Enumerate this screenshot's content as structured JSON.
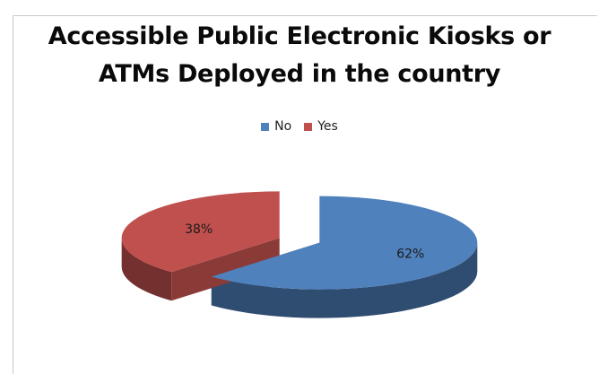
{
  "chart_data": {
    "type": "pie",
    "title_lines": [
      "Accessible Public Electronic Kiosks or",
      "ATMs Deployed in the country"
    ],
    "categories": [
      "No",
      "Yes"
    ],
    "values": [
      62,
      38
    ],
    "labels": [
      "62%",
      "38%"
    ],
    "colors": [
      "#4f81bd",
      "#c0504d"
    ],
    "legend_position": "top",
    "style": "3d-exploded"
  }
}
